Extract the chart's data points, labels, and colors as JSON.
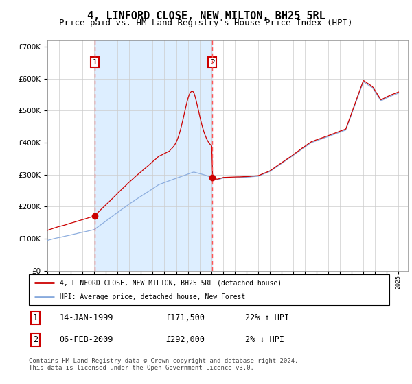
{
  "title": "4, LINFORD CLOSE, NEW MILTON, BH25 5RL",
  "subtitle": "Price paid vs. HM Land Registry's House Price Index (HPI)",
  "title_fontsize": 11,
  "subtitle_fontsize": 9,
  "background_color": "#ffffff",
  "plot_bg_color": "#ffffff",
  "shaded_region_color": "#ddeeff",
  "grid_color": "#cccccc",
  "red_line_color": "#cc0000",
  "blue_line_color": "#88aadd",
  "sale1_date_x": 1999.04,
  "sale1_price": 171500,
  "sale2_date_x": 2009.09,
  "sale2_price": 292000,
  "vline_color": "#ff5555",
  "marker_color": "#cc0000",
  "legend_label1": "4, LINFORD CLOSE, NEW MILTON, BH25 5RL (detached house)",
  "legend_label2": "HPI: Average price, detached house, New Forest",
  "table_row1": [
    "1",
    "14-JAN-1999",
    "£171,500",
    "22% ↑ HPI"
  ],
  "table_row2": [
    "2",
    "06-FEB-2009",
    "£292,000",
    "2% ↓ HPI"
  ],
  "footer": "Contains HM Land Registry data © Crown copyright and database right 2024.\nThis data is licensed under the Open Government Licence v3.0.",
  "ylim": [
    0,
    720000
  ],
  "xlim_start": 1995.0,
  "xlim_end": 2025.8
}
